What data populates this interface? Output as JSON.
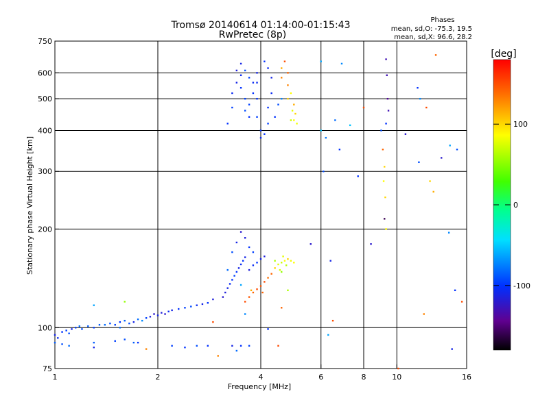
{
  "chart_data": {
    "type": "scatter",
    "title": "Tromsø 20140614 01:14:00-01:15:43",
    "subtitle": "RwPretec (8p)",
    "xlabel": "Frequency [MHz]",
    "ylabel": "Stationary phase Virtual Height [km]",
    "x_scale": "log",
    "y_scale": "log",
    "xlim": [
      1,
      16
    ],
    "ylim": [
      75,
      750
    ],
    "x_ticks": [
      1,
      2,
      4,
      6,
      8,
      10,
      16
    ],
    "y_ticks": [
      75,
      100,
      200,
      300,
      400,
      500,
      600,
      750
    ],
    "x_grid": [
      2,
      4,
      6,
      8,
      10
    ],
    "y_grid": [
      100,
      200,
      300,
      400,
      500,
      600
    ],
    "grid": true,
    "phases_box": {
      "title": "Phases",
      "line_o": "mean, sd,O: -75.3, 19.5",
      "line_x": "mean, sd,X:  96.6, 28.2"
    },
    "colorbar": {
      "label": "[deg]",
      "range": [
        -180,
        180
      ],
      "ticks": [
        "100",
        "0",
        "-100"
      ],
      "tick_values": [
        100,
        0,
        -100
      ],
      "colormap": "rainbow",
      "placement": "right"
    },
    "points": [
      [
        1.0,
        95,
        -110
      ],
      [
        1.02,
        93,
        -105
      ],
      [
        1.05,
        97,
        -100
      ],
      [
        1.08,
        98,
        -95
      ],
      [
        1.1,
        96,
        -90
      ],
      [
        1.12,
        99,
        -110
      ],
      [
        1.15,
        100,
        -95
      ],
      [
        1.18,
        101,
        -80
      ],
      [
        1.2,
        99,
        -90
      ],
      [
        1.25,
        101,
        -85
      ],
      [
        1.3,
        100,
        -95
      ],
      [
        1.35,
        102,
        -85
      ],
      [
        1.4,
        102,
        -80
      ],
      [
        1.45,
        103,
        -90
      ],
      [
        1.5,
        102,
        -95
      ],
      [
        1.55,
        104,
        -100
      ],
      [
        1.6,
        105,
        -85
      ],
      [
        1.65,
        103,
        -90
      ],
      [
        1.7,
        104,
        -110
      ],
      [
        1.75,
        106,
        -80
      ],
      [
        1.8,
        105,
        -70
      ],
      [
        1.85,
        107,
        -95
      ],
      [
        1.9,
        108,
        -115
      ],
      [
        1.95,
        110,
        -120
      ],
      [
        2.0,
        109,
        -110
      ],
      [
        2.05,
        111,
        -115
      ],
      [
        2.1,
        110,
        -120
      ],
      [
        2.15,
        112,
        -105
      ],
      [
        2.2,
        113,
        -110
      ],
      [
        2.3,
        114,
        -100
      ],
      [
        2.4,
        115,
        -95
      ],
      [
        2.5,
        116,
        -90
      ],
      [
        2.6,
        117,
        -105
      ],
      [
        2.7,
        118,
        -110
      ],
      [
        2.8,
        119,
        -100
      ],
      [
        2.9,
        122,
        -115
      ],
      [
        1.0,
        90,
        -85
      ],
      [
        1.05,
        89,
        -90
      ],
      [
        1.1,
        88,
        -80
      ],
      [
        1.3,
        90,
        -85
      ],
      [
        1.5,
        91,
        -95
      ],
      [
        1.6,
        92,
        -90
      ],
      [
        1.7,
        90,
        -85
      ],
      [
        2.2,
        88,
        -95
      ],
      [
        2.4,
        87,
        -100
      ],
      [
        2.6,
        88,
        -90
      ],
      [
        2.8,
        88,
        -100
      ],
      [
        3.3,
        88,
        -110
      ],
      [
        3.5,
        88,
        -100
      ],
      [
        3.7,
        88,
        -95
      ],
      [
        1.3,
        87,
        -110
      ],
      [
        1.55,
        100,
        -80
      ],
      [
        1.75,
        90,
        -100
      ],
      [
        1.3,
        117,
        -60
      ],
      [
        1.6,
        120,
        60
      ],
      [
        1.85,
        86,
        130
      ],
      [
        2.9,
        104,
        150
      ],
      [
        3.0,
        82,
        130
      ],
      [
        3.4,
        85,
        -80
      ],
      [
        3.6,
        110,
        -70
      ],
      [
        4.2,
        99,
        -100
      ],
      [
        4.5,
        88,
        150
      ],
      [
        4.6,
        115,
        140
      ],
      [
        4.8,
        130,
        70
      ],
      [
        3.1,
        124,
        -120
      ],
      [
        3.15,
        128,
        -115
      ],
      [
        3.2,
        132,
        -110
      ],
      [
        3.25,
        136,
        -105
      ],
      [
        3.3,
        140,
        -100
      ],
      [
        3.35,
        144,
        -95
      ],
      [
        3.4,
        148,
        -100
      ],
      [
        3.45,
        152,
        -110
      ],
      [
        3.5,
        156,
        -105
      ],
      [
        3.55,
        160,
        -100
      ],
      [
        3.6,
        164,
        -110
      ],
      [
        3.7,
        150,
        -115
      ],
      [
        3.8,
        155,
        -105
      ],
      [
        3.9,
        158,
        -100
      ],
      [
        4.0,
        162,
        -110
      ],
      [
        4.1,
        165,
        -115
      ],
      [
        3.2,
        150,
        -80
      ],
      [
        3.3,
        170,
        -90
      ],
      [
        3.4,
        182,
        -110
      ],
      [
        3.5,
        196,
        -120
      ],
      [
        3.6,
        188,
        -115
      ],
      [
        3.7,
        176,
        -100
      ],
      [
        3.8,
        170,
        -95
      ],
      [
        3.5,
        135,
        -60
      ],
      [
        3.6,
        120,
        150
      ],
      [
        3.7,
        124,
        145
      ],
      [
        3.8,
        128,
        140
      ],
      [
        3.9,
        131,
        150
      ],
      [
        4.0,
        134,
        145
      ],
      [
        4.1,
        138,
        150
      ],
      [
        4.2,
        142,
        135
      ],
      [
        4.3,
        146,
        140
      ],
      [
        3.75,
        130,
        120
      ],
      [
        4.05,
        128,
        140
      ],
      [
        4.4,
        152,
        110
      ],
      [
        4.5,
        156,
        90
      ],
      [
        4.6,
        158,
        80
      ],
      [
        4.7,
        160,
        100
      ],
      [
        4.8,
        162,
        110
      ],
      [
        4.9,
        160,
        95
      ],
      [
        5.0,
        158,
        100
      ],
      [
        4.55,
        150,
        85
      ],
      [
        4.65,
        165,
        90
      ],
      [
        4.75,
        155,
        75
      ],
      [
        4.6,
        148,
        60
      ],
      [
        4.4,
        160,
        70
      ],
      [
        3.2,
        420,
        -100
      ],
      [
        3.3,
        470,
        -95
      ],
      [
        3.3,
        520,
        -105
      ],
      [
        3.4,
        560,
        -110
      ],
      [
        3.4,
        610,
        -115
      ],
      [
        3.5,
        640,
        -110
      ],
      [
        3.5,
        590,
        -105
      ],
      [
        3.5,
        540,
        -100
      ],
      [
        3.6,
        500,
        -95
      ],
      [
        3.6,
        460,
        -90
      ],
      [
        3.7,
        440,
        -100
      ],
      [
        3.7,
        480,
        -95
      ],
      [
        3.8,
        520,
        -100
      ],
      [
        3.8,
        560,
        -105
      ],
      [
        3.9,
        600,
        -110
      ],
      [
        3.9,
        560,
        -105
      ],
      [
        3.9,
        500,
        -100
      ],
      [
        3.9,
        440,
        -95
      ],
      [
        4.0,
        400,
        -100
      ],
      [
        4.0,
        380,
        -105
      ],
      [
        4.1,
        390,
        -100
      ],
      [
        4.2,
        420,
        -95
      ],
      [
        4.2,
        470,
        -100
      ],
      [
        4.3,
        520,
        -105
      ],
      [
        4.3,
        580,
        -110
      ],
      [
        4.2,
        620,
        -105
      ],
      [
        4.1,
        650,
        -100
      ],
      [
        4.4,
        440,
        -100
      ],
      [
        4.5,
        480,
        -90
      ],
      [
        4.6,
        500,
        -70
      ],
      [
        3.6,
        610,
        -90
      ],
      [
        3.7,
        580,
        -95
      ],
      [
        4.6,
        620,
        120
      ],
      [
        4.6,
        580,
        130
      ],
      [
        4.8,
        600,
        140
      ],
      [
        4.8,
        550,
        130
      ],
      [
        4.9,
        520,
        100
      ],
      [
        4.7,
        650,
        150
      ],
      [
        4.8,
        500,
        110
      ],
      [
        4.95,
        460,
        90
      ],
      [
        5.0,
        430,
        100
      ],
      [
        5.05,
        450,
        110
      ],
      [
        4.9,
        430,
        80
      ],
      [
        5.0,
        480,
        120
      ],
      [
        5.1,
        420,
        95
      ],
      [
        5.6,
        180,
        -120
      ],
      [
        6.0,
        400,
        -50
      ],
      [
        6.0,
        650,
        -60
      ],
      [
        6.1,
        300,
        -90
      ],
      [
        6.2,
        380,
        -75
      ],
      [
        6.3,
        95,
        -60
      ],
      [
        6.4,
        160,
        -110
      ],
      [
        6.5,
        105,
        150
      ],
      [
        6.6,
        430,
        -80
      ],
      [
        6.8,
        350,
        -100
      ],
      [
        6.9,
        640,
        -70
      ],
      [
        7.3,
        415,
        -50
      ],
      [
        7.7,
        290,
        -100
      ],
      [
        8.0,
        470,
        150
      ],
      [
        8.4,
        180,
        -120
      ],
      [
        9.0,
        400,
        -90
      ],
      [
        9.1,
        350,
        140
      ],
      [
        9.15,
        280,
        100
      ],
      [
        9.2,
        310,
        110
      ],
      [
        9.3,
        420,
        -100
      ],
      [
        9.3,
        660,
        -130
      ],
      [
        9.35,
        590,
        -130
      ],
      [
        9.4,
        500,
        -140
      ],
      [
        9.45,
        460,
        -130
      ],
      [
        9.2,
        215,
        -160
      ],
      [
        9.3,
        200,
        100
      ],
      [
        9.25,
        250,
        110
      ],
      [
        10.1,
        75,
        150
      ],
      [
        10.6,
        390,
        -120
      ],
      [
        11.5,
        540,
        -100
      ],
      [
        11.6,
        320,
        -90
      ],
      [
        11.7,
        500,
        -70
      ],
      [
        12.0,
        110,
        130
      ],
      [
        12.2,
        470,
        150
      ],
      [
        12.5,
        280,
        110
      ],
      [
        12.8,
        260,
        120
      ],
      [
        13.0,
        680,
        140
      ],
      [
        13.5,
        330,
        -120
      ],
      [
        14.2,
        195,
        -70
      ],
      [
        14.3,
        360,
        -60
      ],
      [
        14.5,
        86,
        -110
      ],
      [
        14.8,
        130,
        -100
      ],
      [
        15.5,
        120,
        150
      ],
      [
        15.0,
        350,
        -90
      ]
    ]
  }
}
